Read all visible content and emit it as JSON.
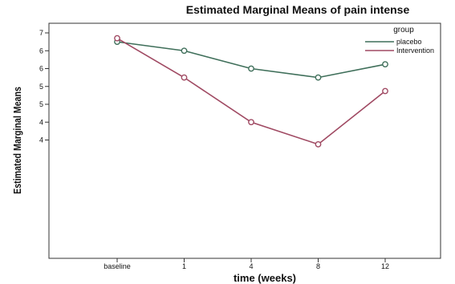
{
  "chart_data": {
    "type": "line",
    "title": "Estimated Marginal Means of pain intense",
    "xlabel": "time (weeks)",
    "ylabel": "Estimated Marginal Means",
    "categories": [
      "baseline",
      "1",
      "4",
      "8",
      "12"
    ],
    "y_tick_labels": [
      "4",
      "4",
      "5",
      "5",
      "6",
      "6",
      "7"
    ],
    "ylim": [
      4,
      7
    ],
    "grid": false,
    "legend": {
      "title": "group",
      "position": "top-right"
    },
    "series": [
      {
        "name": "placebo",
        "color": "#3f6f5a",
        "values": [
          6.75,
          6.5,
          6.0,
          5.75,
          6.12
        ]
      },
      {
        "name": "Intervention",
        "color": "#a04a63",
        "values": [
          6.85,
          5.75,
          4.5,
          3.88,
          5.37
        ]
      }
    ]
  }
}
